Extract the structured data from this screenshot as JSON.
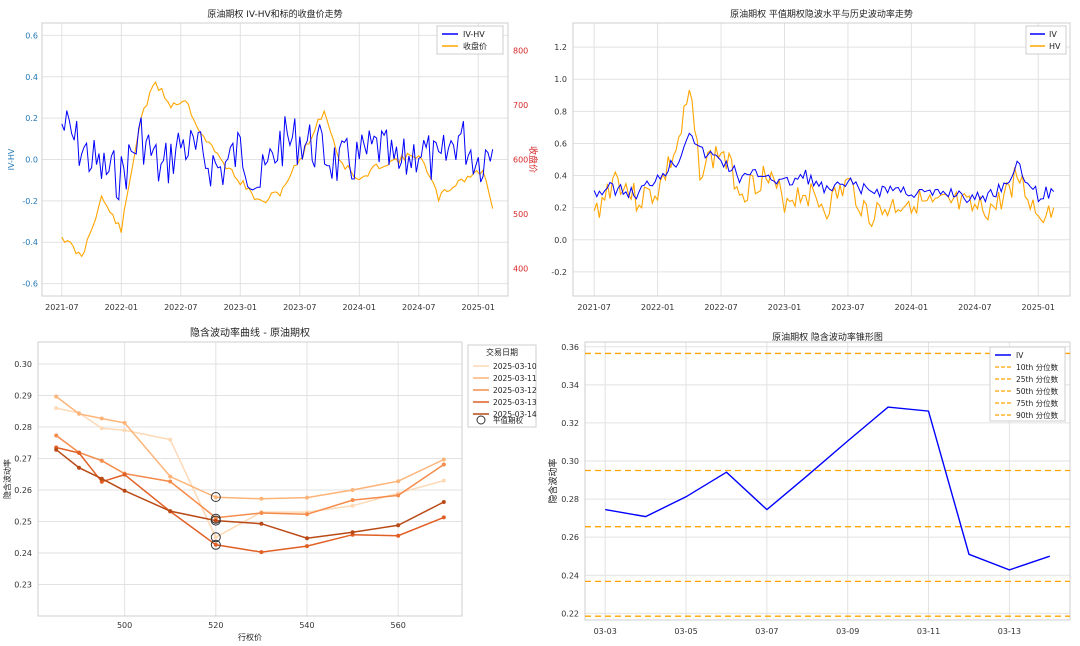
{
  "chart_data": [
    {
      "type": "line",
      "title": "原油期权 IV-HV和标的收盘价走势",
      "ylabel": "IV-HV",
      "y2label": "收盘价",
      "x_ticks": [
        "2021-07",
        "2022-01",
        "2022-07",
        "2023-01",
        "2023-07",
        "2024-01",
        "2024-07",
        "2025-01"
      ],
      "y_ticks": [
        "-0.6",
        "-0.4",
        "-0.2",
        "0.0",
        "0.2",
        "0.4",
        "0.6"
      ],
      "y2_ticks": [
        "400",
        "500",
        "600",
        "700",
        "800"
      ],
      "ylim": [
        -0.66,
        0.66
      ],
      "y2lim": [
        350,
        850
      ],
      "legend_position": "top-right",
      "colors": {
        "iv_hv": "#0000ff",
        "close": "#ffa500",
        "left_axis": "#1f77b4",
        "right_axis": "#d62728"
      },
      "series": [
        {
          "name": "IV-HV",
          "axis": "left",
          "x": [
            "2021-07-01",
            "2021-09-01",
            "2021-11-01",
            "2022-01-01",
            "2022-03-01",
            "2022-05-01",
            "2022-07-01",
            "2022-09-01",
            "2022-11-01",
            "2023-01-01",
            "2023-03-01",
            "2023-05-01",
            "2023-07-01",
            "2023-09-01",
            "2023-11-01",
            "2024-01-01",
            "2024-03-01",
            "2024-05-01",
            "2024-07-01",
            "2024-09-01",
            "2024-11-01",
            "2025-01-01",
            "2025-02-15"
          ],
          "values": [
            0.17,
            0.05,
            -0.05,
            -0.08,
            0.12,
            -0.06,
            0.08,
            0.02,
            -0.05,
            0.05,
            -0.12,
            0.08,
            0.1,
            0.05,
            -0.03,
            0.0,
            0.06,
            -0.05,
            0.06,
            -0.04,
            0.12,
            0.0,
            0.05
          ]
        },
        {
          "name": "收盘价",
          "axis": "right",
          "x": [
            "2021-07-01",
            "2021-09-01",
            "2021-11-01",
            "2022-01-01",
            "2022-03-01",
            "2022-04-15",
            "2022-06-01",
            "2022-07-15",
            "2022-09-01",
            "2022-11-01",
            "2023-01-01",
            "2023-03-01",
            "2023-05-01",
            "2023-07-01",
            "2023-09-15",
            "2023-11-01",
            "2024-01-01",
            "2024-03-01",
            "2024-05-01",
            "2024-07-01",
            "2024-09-01",
            "2024-11-01",
            "2025-01-15",
            "2025-02-15"
          ],
          "values": [
            460,
            420,
            530,
            470,
            680,
            740,
            700,
            710,
            650,
            600,
            560,
            520,
            540,
            600,
            690,
            600,
            560,
            590,
            600,
            610,
            530,
            560,
            580,
            510
          ]
        }
      ]
    },
    {
      "type": "line",
      "title": "原油期权 平值期权隐波水平与历史波动率走势",
      "x_ticks": [
        "2021-07",
        "2022-01",
        "2022-07",
        "2023-01",
        "2023-07",
        "2024-01",
        "2024-07",
        "2025-01"
      ],
      "y_ticks": [
        "-0.2",
        "0.0",
        "0.2",
        "0.4",
        "0.6",
        "0.8",
        "1.0",
        "1.2"
      ],
      "ylim": [
        -0.35,
        1.35
      ],
      "legend_position": "top-right",
      "colors": {
        "IV": "#0000ff",
        "HV": "#ffa500"
      },
      "series": [
        {
          "name": "IV",
          "x": [
            "2021-07-01",
            "2021-09-01",
            "2021-11-01",
            "2022-01-01",
            "2022-03-01",
            "2022-04-01",
            "2022-05-01",
            "2022-07-01",
            "2022-09-01",
            "2022-11-01",
            "2023-01-01",
            "2023-03-01",
            "2023-05-01",
            "2023-07-01",
            "2023-09-01",
            "2023-11-01",
            "2024-01-01",
            "2024-03-01",
            "2024-05-01",
            "2024-07-01",
            "2024-09-01",
            "2024-11-01",
            "2025-01-01",
            "2025-02-15"
          ],
          "values": [
            0.3,
            0.32,
            0.28,
            0.4,
            0.5,
            0.7,
            0.55,
            0.5,
            0.38,
            0.42,
            0.35,
            0.4,
            0.3,
            0.35,
            0.3,
            0.32,
            0.3,
            0.28,
            0.3,
            0.25,
            0.3,
            0.45,
            0.28,
            0.3
          ]
        },
        {
          "name": "HV",
          "x": [
            "2021-07-01",
            "2021-09-01",
            "2021-11-01",
            "2022-01-01",
            "2022-03-01",
            "2022-04-01",
            "2022-05-01",
            "2022-07-01",
            "2022-09-01",
            "2022-11-01",
            "2023-01-01",
            "2023-03-01",
            "2023-05-01",
            "2023-07-01",
            "2023-09-01",
            "2023-11-01",
            "2024-01-01",
            "2024-03-01",
            "2024-05-01",
            "2024-07-01",
            "2024-09-01",
            "2024-11-01",
            "2025-01-01",
            "2025-02-15"
          ],
          "values": [
            0.15,
            0.4,
            0.25,
            0.3,
            0.6,
            0.9,
            0.45,
            0.55,
            0.3,
            0.4,
            0.25,
            0.3,
            0.2,
            0.35,
            0.15,
            0.2,
            0.25,
            0.2,
            0.22,
            0.18,
            0.2,
            0.4,
            0.15,
            0.2
          ]
        }
      ]
    },
    {
      "type": "line",
      "title": "隐含波动率曲线 - 原油期权",
      "xlabel": "行权价",
      "ylabel": "隐含波动率",
      "x_ticks": [
        "500",
        "520",
        "540",
        "560"
      ],
      "y_ticks": [
        "0.23",
        "0.24",
        "0.25",
        "0.26",
        "0.27",
        "0.28",
        "0.29",
        "0.30"
      ],
      "xlim": [
        481,
        574
      ],
      "ylim": [
        0.22,
        0.307
      ],
      "legend_title": "交易日期",
      "legend_position": "top-right",
      "atm_label": "平值期权",
      "x": [
        485,
        490,
        495,
        500,
        510,
        520,
        530,
        540,
        550,
        560,
        570
      ],
      "series": [
        {
          "name": "2025-03-10",
          "color": "#fdd9b6",
          "values": [
            0.286,
            0.2845,
            0.2796,
            0.279,
            0.276,
            0.245,
            0.253,
            0.253,
            0.255,
            0.259,
            0.263
          ]
        },
        {
          "name": "2025-03-11",
          "color": "#fcb479",
          "values": [
            0.2897,
            0.2842,
            0.2827,
            0.2813,
            0.2643,
            0.2577,
            0.2572,
            0.2576,
            0.26,
            0.2628,
            0.2697
          ]
        },
        {
          "name": "2025-03-12",
          "color": "#f58c4b",
          "values": [
            0.2773,
            0.2719,
            0.2693,
            0.2652,
            0.2627,
            0.2512,
            0.2527,
            0.2523,
            0.2568,
            0.2583,
            0.2681
          ]
        },
        {
          "name": "2025-03-13",
          "color": "#e15f24",
          "values": [
            0.2735,
            0.2718,
            0.2626,
            0.2649,
            0.2532,
            0.2426,
            0.2403,
            0.2422,
            0.2458,
            0.2455,
            0.2513
          ]
        },
        {
          "name": "2025-03-14",
          "color": "#b94a16",
          "values": [
            0.2728,
            0.2671,
            0.2636,
            0.2598,
            0.2533,
            0.2503,
            0.2493,
            0.2447,
            0.2466,
            0.2488,
            0.2562
          ]
        }
      ],
      "atm_points": [
        {
          "x": 520,
          "y": 0.2578
        },
        {
          "x": 520,
          "y": 0.2509
        },
        {
          "x": 520,
          "y": 0.2503
        },
        {
          "x": 520,
          "y": 0.245
        },
        {
          "x": 520,
          "y": 0.2426
        }
      ]
    },
    {
      "type": "line",
      "title": "原油期权 隐含波动率锥形图",
      "ylabel": "隐含波动率",
      "x_ticks": [
        "03-03",
        "03-05",
        "03-07",
        "03-09",
        "03-11",
        "03-13"
      ],
      "y_ticks": [
        "0.22",
        "0.24",
        "0.26",
        "0.28",
        "0.30",
        "0.32",
        "0.34",
        "0.36"
      ],
      "xlim": [
        -0.5,
        11.5
      ],
      "ylim": [
        0.2165,
        0.3625
      ],
      "legend_position": "top-right",
      "colors": {
        "IV": "#0000ff",
        "percentile": "#ffa500"
      },
      "series": [
        {
          "name": "IV",
          "x": [
            0,
            1,
            2,
            3,
            4,
            5,
            6,
            7,
            8,
            9,
            10,
            11
          ],
          "values": [
            0.2745,
            0.2708,
            0.2812,
            0.2941,
            0.2745,
            0.2923,
            0.3105,
            0.3283,
            0.3262,
            0.251,
            0.2428,
            0.25
          ]
        }
      ],
      "percentiles": [
        {
          "name": "10th 分位数",
          "value": 0.2185
        },
        {
          "name": "25th 分位数",
          "value": 0.2368
        },
        {
          "name": "50th 分位数",
          "value": 0.2655
        },
        {
          "name": "75th 分位数",
          "value": 0.295
        },
        {
          "name": "90th 分位数",
          "value": 0.3565
        }
      ]
    }
  ]
}
